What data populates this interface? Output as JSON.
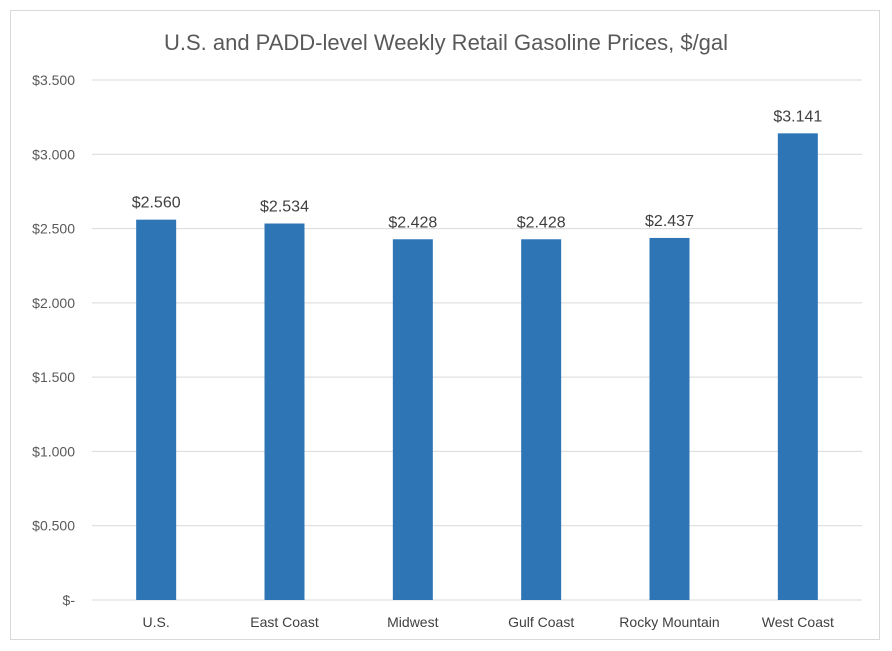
{
  "chart_data": {
    "type": "bar",
    "title": "U.S. and PADD-level Weekly Retail Gasoline Prices, $/gal",
    "xlabel": "",
    "ylabel": "",
    "categories": [
      "U.S.",
      "East Coast",
      "Midwest",
      "Gulf Coast",
      "Rocky Mountain",
      "West Coast"
    ],
    "values": [
      2.56,
      2.534,
      2.428,
      2.428,
      2.437,
      3.141
    ],
    "data_labels": [
      "$2.560",
      "$2.534",
      "$2.428",
      "$2.428",
      "$2.437",
      "$3.141"
    ],
    "ylim": [
      0,
      3.5
    ],
    "y_ticks": [
      0,
      0.5,
      1.0,
      1.5,
      2.0,
      2.5,
      3.0,
      3.5
    ],
    "y_tick_labels": [
      "$-",
      "$0.500",
      "$1.000",
      "$1.500",
      "$2.000",
      "$2.500",
      "$3.000",
      "$3.500"
    ],
    "grid": true,
    "legend": "none",
    "bar_color": "#2e75b6"
  }
}
